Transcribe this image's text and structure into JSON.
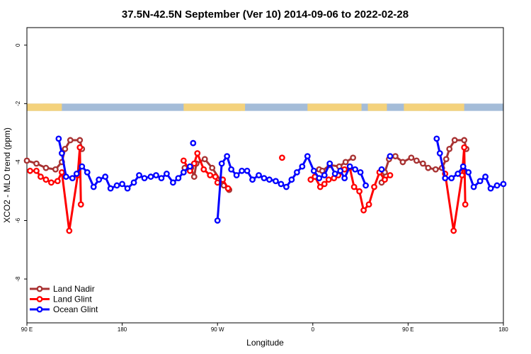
{
  "chart_data": {
    "type": "line",
    "title": "37.5N-42.5N September (Ver 10)   2014-09-06 to 2022-02-28",
    "xlabel": "Longitude",
    "ylabel": "XCO2 - MLO trend (ppm)",
    "xlim": [
      90,
      540
    ],
    "ylim": [
      -9.5,
      0.6
    ],
    "x_ticks": [
      {
        "value": 90,
        "label": "90 E"
      },
      {
        "value": 180,
        "label": "180"
      },
      {
        "value": 270,
        "label": "90 W"
      },
      {
        "value": 360,
        "label": "0"
      },
      {
        "value": 450,
        "label": "90 E"
      },
      {
        "value": 540,
        "label": "180"
      }
    ],
    "y_ticks": [
      {
        "value": 0,
        "label": "0"
      },
      {
        "value": -2,
        "label": "-2"
      },
      {
        "value": -4,
        "label": "-4"
      },
      {
        "value": -6,
        "label": "-6"
      },
      {
        "value": -8,
        "label": "-8"
      }
    ],
    "grid": false,
    "legend_position": "bottom-left",
    "land_ocean_strip": {
      "y_range": [
        -2.25,
        -2.0
      ],
      "ocean_color": "#a4bcd8",
      "land_color": "#f4d27c",
      "land_segments": [
        [
          90,
          123
        ],
        [
          105,
          112
        ],
        [
          238,
          296
        ],
        [
          282,
          292
        ],
        [
          355,
          406
        ],
        [
          412,
          430
        ],
        [
          446,
          503
        ],
        [
          470,
          480
        ]
      ]
    },
    "series": [
      {
        "name": "Land Nadir",
        "color": "#a83232",
        "segments": [
          [
            [
              90,
              -3.95
            ],
            [
              99,
              -4.05
            ],
            [
              108,
              -4.2
            ],
            [
              117,
              -4.25
            ],
            [
              123,
              -4.0
            ],
            [
              126,
              -3.55
            ],
            [
              131,
              -3.25
            ],
            [
              140,
              -3.25
            ],
            [
              142,
              -3.55
            ]
          ],
          [
            [
              239,
              -4.2
            ],
            [
              245,
              -4.2
            ],
            [
              248,
              -4.5
            ],
            [
              250,
              -4.05
            ],
            [
              258,
              -3.9
            ],
            [
              265,
              -4.2
            ],
            [
              276,
              -4.8
            ],
            [
              281,
              -4.95
            ]
          ],
          [
            [
              366,
              -4.25
            ],
            [
              369,
              -4.3
            ],
            [
              376,
              -4.1
            ],
            [
              385,
              -4.15
            ],
            [
              391,
              -4.0
            ],
            [
              398,
              -3.85
            ]
          ],
          [
            [
              425,
              -4.7
            ],
            [
              428,
              -4.35
            ],
            [
              432,
              -3.9
            ],
            [
              438,
              -3.8
            ],
            [
              445,
              -4.0
            ],
            [
              453,
              -3.85
            ],
            [
              458,
              -3.95
            ],
            [
              464,
              -4.05
            ],
            [
              469,
              -4.2
            ],
            [
              476,
              -4.25
            ],
            [
              482,
              -4.2
            ],
            [
              486,
              -3.9
            ],
            [
              489,
              -3.55
            ],
            [
              494,
              -3.25
            ],
            [
              503,
              -3.25
            ],
            [
              505,
              -3.55
            ]
          ]
        ]
      },
      {
        "name": "Land Glint",
        "color": "#ff0000",
        "segments": [
          [
            [
              93,
              -4.3
            ],
            [
              99,
              -4.3
            ],
            [
              103,
              -4.5
            ],
            [
              108,
              -4.6
            ],
            [
              113,
              -4.7
            ],
            [
              119,
              -4.65
            ],
            [
              123,
              -4.35
            ],
            [
              130,
              -6.35
            ],
            [
              138,
              -4.45
            ],
            [
              140,
              -3.5
            ],
            [
              141,
              -5.45
            ]
          ],
          [
            [
              238,
              -3.95
            ],
            [
              244,
              -4.3
            ],
            [
              248,
              -4.05
            ],
            [
              251,
              -3.7
            ],
            [
              257,
              -4.25
            ],
            [
              263,
              -4.45
            ],
            [
              268,
              -4.5
            ],
            [
              270,
              -4.7
            ],
            [
              275,
              -4.6
            ],
            [
              280,
              -4.9
            ]
          ],
          [
            [
              331,
              -3.85
            ]
          ],
          [
            [
              358,
              -4.6
            ],
            [
              362,
              -4.5
            ],
            [
              367,
              -4.85
            ],
            [
              371,
              -4.75
            ],
            [
              375,
              -4.6
            ],
            [
              380,
              -4.55
            ],
            [
              384,
              -4.45
            ],
            [
              390,
              -4.25
            ],
            [
              395,
              -4.2
            ],
            [
              399,
              -4.85
            ],
            [
              404,
              -5.0
            ],
            [
              408,
              -5.65
            ],
            [
              413,
              -5.45
            ],
            [
              418,
              -4.85
            ],
            [
              423,
              -4.35
            ],
            [
              428,
              -4.6
            ],
            [
              433,
              -4.45
            ]
          ],
          [
            [
              485,
              -4.4
            ],
            [
              493,
              -6.35
            ],
            [
              501,
              -4.45
            ],
            [
              503,
              -3.5
            ],
            [
              504,
              -5.45
            ]
          ]
        ]
      },
      {
        "name": "Ocean Glint",
        "color": "#0000ff",
        "segments": [
          [
            [
              120,
              -3.2
            ],
            [
              123,
              -3.7
            ],
            [
              127,
              -4.5
            ],
            [
              133,
              -4.55
            ],
            [
              137,
              -4.4
            ],
            [
              142,
              -4.15
            ],
            [
              147,
              -4.35
            ],
            [
              153,
              -4.85
            ],
            [
              158,
              -4.6
            ],
            [
              164,
              -4.5
            ],
            [
              169,
              -4.9
            ],
            [
              175,
              -4.8
            ],
            [
              180,
              -4.75
            ],
            [
              185,
              -4.9
            ],
            [
              191,
              -4.7
            ],
            [
              196,
              -4.45
            ],
            [
              201,
              -4.55
            ],
            [
              207,
              -4.5
            ],
            [
              212,
              -4.45
            ],
            [
              217,
              -4.55
            ],
            [
              222,
              -4.4
            ],
            [
              228,
              -4.7
            ],
            [
              233,
              -4.55
            ],
            [
              238,
              -4.35
            ],
            [
              244,
              -4.15
            ]
          ],
          [
            [
              247,
              -3.35
            ]
          ],
          [
            [
              270,
              -6.0
            ],
            [
              274,
              -4.05
            ],
            [
              279,
              -3.8
            ],
            [
              283,
              -4.25
            ],
            [
              288,
              -4.45
            ],
            [
              293,
              -4.3
            ],
            [
              298,
              -4.3
            ],
            [
              303,
              -4.6
            ],
            [
              309,
              -4.45
            ],
            [
              314,
              -4.55
            ],
            [
              319,
              -4.6
            ],
            [
              325,
              -4.65
            ],
            [
              330,
              -4.75
            ],
            [
              335,
              -4.85
            ],
            [
              340,
              -4.6
            ],
            [
              345,
              -4.35
            ],
            [
              350,
              -4.15
            ],
            [
              355,
              -3.8
            ],
            [
              361,
              -4.3
            ],
            [
              366,
              -4.55
            ],
            [
              371,
              -4.45
            ],
            [
              376,
              -4.05
            ],
            [
              381,
              -4.4
            ],
            [
              386,
              -4.3
            ],
            [
              390,
              -4.55
            ],
            [
              395,
              -4.15
            ],
            [
              400,
              -4.25
            ],
            [
              405,
              -4.35
            ],
            [
              410,
              -4.8
            ]
          ],
          [
            [
              425,
              -4.25
            ]
          ],
          [
            [
              433,
              -3.8
            ]
          ],
          [
            [
              477,
              -3.2
            ],
            [
              480,
              -3.7
            ],
            [
              485,
              -4.55
            ],
            [
              491,
              -4.55
            ],
            [
              497,
              -4.4
            ],
            [
              502,
              -4.15
            ],
            [
              507,
              -4.35
            ],
            [
              512,
              -4.85
            ],
            [
              518,
              -4.65
            ],
            [
              523,
              -4.5
            ],
            [
              528,
              -4.9
            ],
            [
              534,
              -4.8
            ],
            [
              540,
              -4.75
            ]
          ]
        ]
      }
    ]
  }
}
